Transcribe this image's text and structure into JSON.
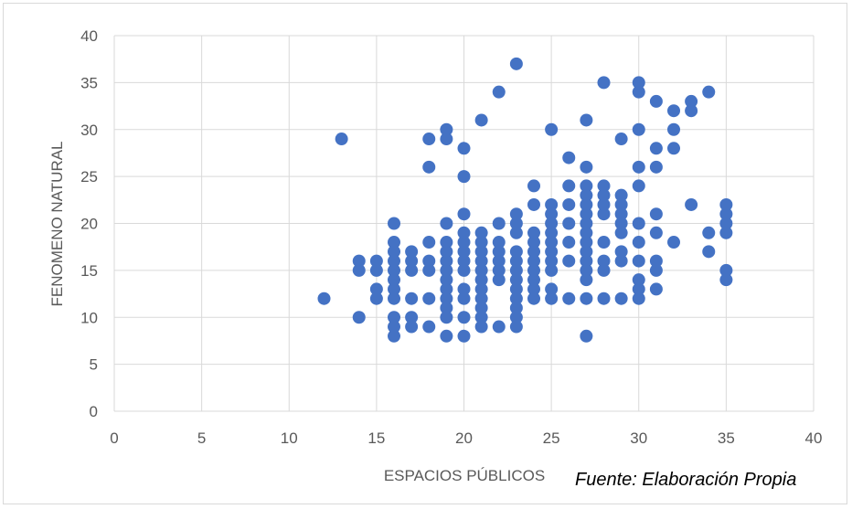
{
  "chart_data": {
    "type": "scatter",
    "xlabel": "ESPACIOS PÚBLICOS",
    "ylabel": "FENOMENO NATURAL",
    "xlim": [
      0,
      40
    ],
    "ylim": [
      0,
      40
    ],
    "xticks": [
      0,
      5,
      10,
      15,
      20,
      25,
      30,
      35,
      40
    ],
    "yticks": [
      0,
      5,
      10,
      15,
      20,
      25,
      30,
      35,
      40
    ],
    "grid": true,
    "legend": "none",
    "marker_color": "#4472c4",
    "points": [
      [
        12,
        12
      ],
      [
        13,
        29
      ],
      [
        14,
        15
      ],
      [
        14,
        16
      ],
      [
        14,
        10
      ],
      [
        15,
        12
      ],
      [
        15,
        13
      ],
      [
        15,
        15
      ],
      [
        15,
        16
      ],
      [
        16,
        8
      ],
      [
        16,
        9
      ],
      [
        16,
        10
      ],
      [
        16,
        12
      ],
      [
        16,
        13
      ],
      [
        16,
        14
      ],
      [
        16,
        15
      ],
      [
        16,
        16
      ],
      [
        16,
        17
      ],
      [
        16,
        18
      ],
      [
        16,
        20
      ],
      [
        17,
        9
      ],
      [
        17,
        10
      ],
      [
        17,
        12
      ],
      [
        17,
        15
      ],
      [
        17,
        16
      ],
      [
        17,
        17
      ],
      [
        18,
        9
      ],
      [
        18,
        12
      ],
      [
        18,
        15
      ],
      [
        18,
        16
      ],
      [
        18,
        18
      ],
      [
        18,
        26
      ],
      [
        18,
        29
      ],
      [
        19,
        8
      ],
      [
        19,
        10
      ],
      [
        19,
        11
      ],
      [
        19,
        12
      ],
      [
        19,
        13
      ],
      [
        19,
        14
      ],
      [
        19,
        15
      ],
      [
        19,
        16
      ],
      [
        19,
        17
      ],
      [
        19,
        18
      ],
      [
        19,
        20
      ],
      [
        19,
        29
      ],
      [
        19,
        30
      ],
      [
        20,
        8
      ],
      [
        20,
        10
      ],
      [
        20,
        12
      ],
      [
        20,
        13
      ],
      [
        20,
        15
      ],
      [
        20,
        16
      ],
      [
        20,
        17
      ],
      [
        20,
        18
      ],
      [
        20,
        19
      ],
      [
        20,
        21
      ],
      [
        20,
        25
      ],
      [
        20,
        28
      ],
      [
        21,
        9
      ],
      [
        21,
        10
      ],
      [
        21,
        11
      ],
      [
        21,
        12
      ],
      [
        21,
        13
      ],
      [
        21,
        14
      ],
      [
        21,
        15
      ],
      [
        21,
        16
      ],
      [
        21,
        17
      ],
      [
        21,
        18
      ],
      [
        21,
        19
      ],
      [
        21,
        31
      ],
      [
        22,
        9
      ],
      [
        22,
        14
      ],
      [
        22,
        15
      ],
      [
        22,
        16
      ],
      [
        22,
        17
      ],
      [
        22,
        18
      ],
      [
        22,
        20
      ],
      [
        22,
        34
      ],
      [
        23,
        9
      ],
      [
        23,
        10
      ],
      [
        23,
        11
      ],
      [
        23,
        12
      ],
      [
        23,
        13
      ],
      [
        23,
        14
      ],
      [
        23,
        15
      ],
      [
        23,
        16
      ],
      [
        23,
        17
      ],
      [
        23,
        19
      ],
      [
        23,
        20
      ],
      [
        23,
        21
      ],
      [
        23,
        37
      ],
      [
        24,
        12
      ],
      [
        24,
        13
      ],
      [
        24,
        14
      ],
      [
        24,
        15
      ],
      [
        24,
        16
      ],
      [
        24,
        17
      ],
      [
        24,
        18
      ],
      [
        24,
        19
      ],
      [
        24,
        22
      ],
      [
        24,
        24
      ],
      [
        25,
        12
      ],
      [
        25,
        13
      ],
      [
        25,
        15
      ],
      [
        25,
        16
      ],
      [
        25,
        17
      ],
      [
        25,
        18
      ],
      [
        25,
        19
      ],
      [
        25,
        20
      ],
      [
        25,
        21
      ],
      [
        25,
        22
      ],
      [
        25,
        30
      ],
      [
        26,
        12
      ],
      [
        26,
        16
      ],
      [
        26,
        18
      ],
      [
        26,
        20
      ],
      [
        26,
        22
      ],
      [
        26,
        24
      ],
      [
        26,
        27
      ],
      [
        27,
        8
      ],
      [
        27,
        12
      ],
      [
        27,
        14
      ],
      [
        27,
        15
      ],
      [
        27,
        16
      ],
      [
        27,
        17
      ],
      [
        27,
        18
      ],
      [
        27,
        19
      ],
      [
        27,
        20
      ],
      [
        27,
        21
      ],
      [
        27,
        22
      ],
      [
        27,
        23
      ],
      [
        27,
        24
      ],
      [
        27,
        26
      ],
      [
        27,
        31
      ],
      [
        28,
        12
      ],
      [
        28,
        15
      ],
      [
        28,
        16
      ],
      [
        28,
        18
      ],
      [
        28,
        21
      ],
      [
        28,
        22
      ],
      [
        28,
        23
      ],
      [
        28,
        24
      ],
      [
        28,
        35
      ],
      [
        29,
        12
      ],
      [
        29,
        16
      ],
      [
        29,
        17
      ],
      [
        29,
        19
      ],
      [
        29,
        20
      ],
      [
        29,
        21
      ],
      [
        29,
        22
      ],
      [
        29,
        23
      ],
      [
        29,
        29
      ],
      [
        30,
        12
      ],
      [
        30,
        13
      ],
      [
        30,
        14
      ],
      [
        30,
        16
      ],
      [
        30,
        18
      ],
      [
        30,
        20
      ],
      [
        30,
        24
      ],
      [
        30,
        26
      ],
      [
        30,
        30
      ],
      [
        30,
        34
      ],
      [
        30,
        35
      ],
      [
        31,
        13
      ],
      [
        31,
        15
      ],
      [
        31,
        16
      ],
      [
        31,
        19
      ],
      [
        31,
        21
      ],
      [
        31,
        26
      ],
      [
        31,
        28
      ],
      [
        31,
        33
      ],
      [
        32,
        18
      ],
      [
        32,
        28
      ],
      [
        32,
        30
      ],
      [
        32,
        32
      ],
      [
        33,
        22
      ],
      [
        33,
        32
      ],
      [
        33,
        33
      ],
      [
        34,
        17
      ],
      [
        34,
        19
      ],
      [
        34,
        34
      ],
      [
        35,
        14
      ],
      [
        35,
        15
      ],
      [
        35,
        19
      ],
      [
        35,
        20
      ],
      [
        35,
        21
      ],
      [
        35,
        22
      ]
    ]
  },
  "source_note": "Fuente: Elaboración Propia"
}
